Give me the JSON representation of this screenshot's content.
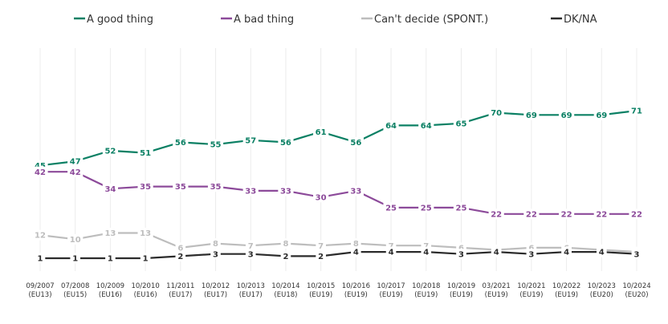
{
  "chart_data": {
    "type": "line",
    "categories": [
      [
        "09/2007",
        "(EU13)"
      ],
      [
        "07/2008",
        "(EU15)"
      ],
      [
        "10/2009",
        "(EU16)"
      ],
      [
        "10/2010",
        "(EU16)"
      ],
      [
        "11/2011",
        "(EU17)"
      ],
      [
        "10/2012",
        "(EU17)"
      ],
      [
        "10/2013",
        "(EU17)"
      ],
      [
        "10/2014",
        "(EU18)"
      ],
      [
        "10/2015",
        "(EU19)"
      ],
      [
        "10/2016",
        "(EU19)"
      ],
      [
        "10/2017",
        "(EU19)"
      ],
      [
        "10/2018",
        "(EU19)"
      ],
      [
        "10/2019",
        "(EU19)"
      ],
      [
        "03/2021",
        "(EU19)"
      ],
      [
        "10/2021",
        "(EU19)"
      ],
      [
        "10/2022",
        "(EU19)"
      ],
      [
        "10/2023",
        "(EU20)"
      ],
      [
        "10/2024",
        "(EU20)"
      ]
    ],
    "series": [
      {
        "name": "A good thing",
        "color": "#0b8064",
        "values": [
          45,
          47,
          52,
          51,
          56,
          55,
          57,
          56,
          61,
          56,
          64,
          64,
          65,
          70,
          69,
          69,
          69,
          71
        ]
      },
      {
        "name": "A bad thing",
        "color": "#8c4a9a",
        "values": [
          42,
          42,
          34,
          35,
          35,
          35,
          33,
          33,
          30,
          33,
          25,
          25,
          25,
          22,
          22,
          22,
          22,
          22
        ]
      },
      {
        "name": "Can't decide (SPONT.)",
        "color": "#bdbdbd",
        "values": [
          12,
          10,
          13,
          13,
          6,
          8,
          7,
          8,
          7,
          8,
          7,
          7,
          6,
          5,
          6,
          6,
          5,
          4
        ]
      },
      {
        "name": "DK/NA",
        "color": "#2b2b2b",
        "values": [
          1,
          1,
          1,
          1,
          2,
          3,
          3,
          2,
          2,
          4,
          4,
          4,
          3,
          4,
          3,
          4,
          4,
          3
        ]
      }
    ],
    "xlabel": "",
    "ylabel": "",
    "legend_position": "top",
    "grid": "vertical"
  }
}
